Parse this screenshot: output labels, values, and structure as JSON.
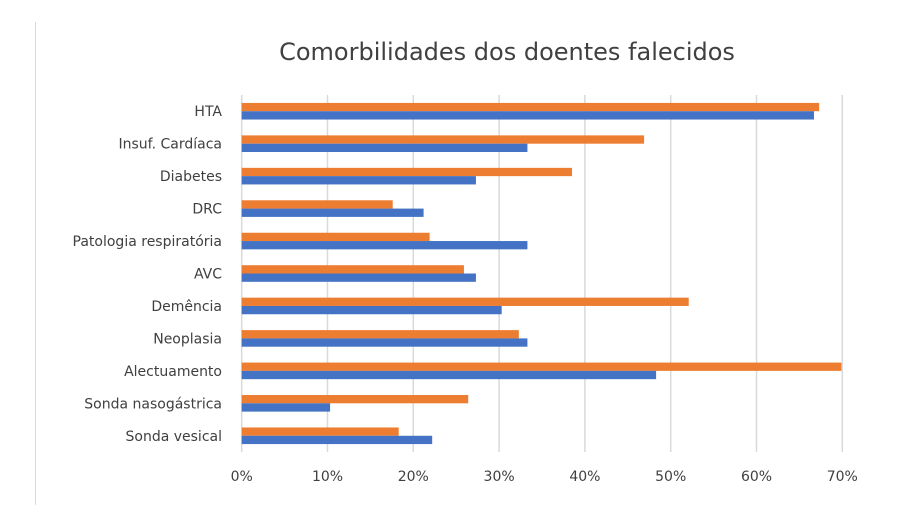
{
  "chart_data": {
    "type": "bar",
    "orientation": "horizontal",
    "title": "Comorbilidades dos doentes falecidos",
    "xlabel": "",
    "ylabel": "",
    "xlim": [
      0,
      70
    ],
    "x_ticks": [
      "0%",
      "10%",
      "20%",
      "30%",
      "40%",
      "50%",
      "60%",
      "70%"
    ],
    "grid": true,
    "legend": "none",
    "categories": [
      "HTA",
      "Insuf. Cardíaca",
      "Diabetes",
      "DRC",
      "Patologia respiratória",
      "AVC",
      "Demência",
      "Neoplasia",
      "Alectuamento",
      "Sonda nasogástrica",
      "Sonda vesical"
    ],
    "series": [
      {
        "name": "series-orange",
        "color": "#ED7D31",
        "values": [
          67.3,
          46.9,
          38.5,
          17.6,
          21.9,
          25.9,
          52.1,
          32.3,
          69.9,
          26.4,
          18.3
        ]
      },
      {
        "name": "series-blue",
        "color": "#4472C4",
        "values": [
          66.7,
          33.3,
          27.3,
          21.2,
          33.3,
          27.3,
          30.3,
          33.3,
          48.3,
          10.3,
          22.2
        ]
      }
    ]
  }
}
